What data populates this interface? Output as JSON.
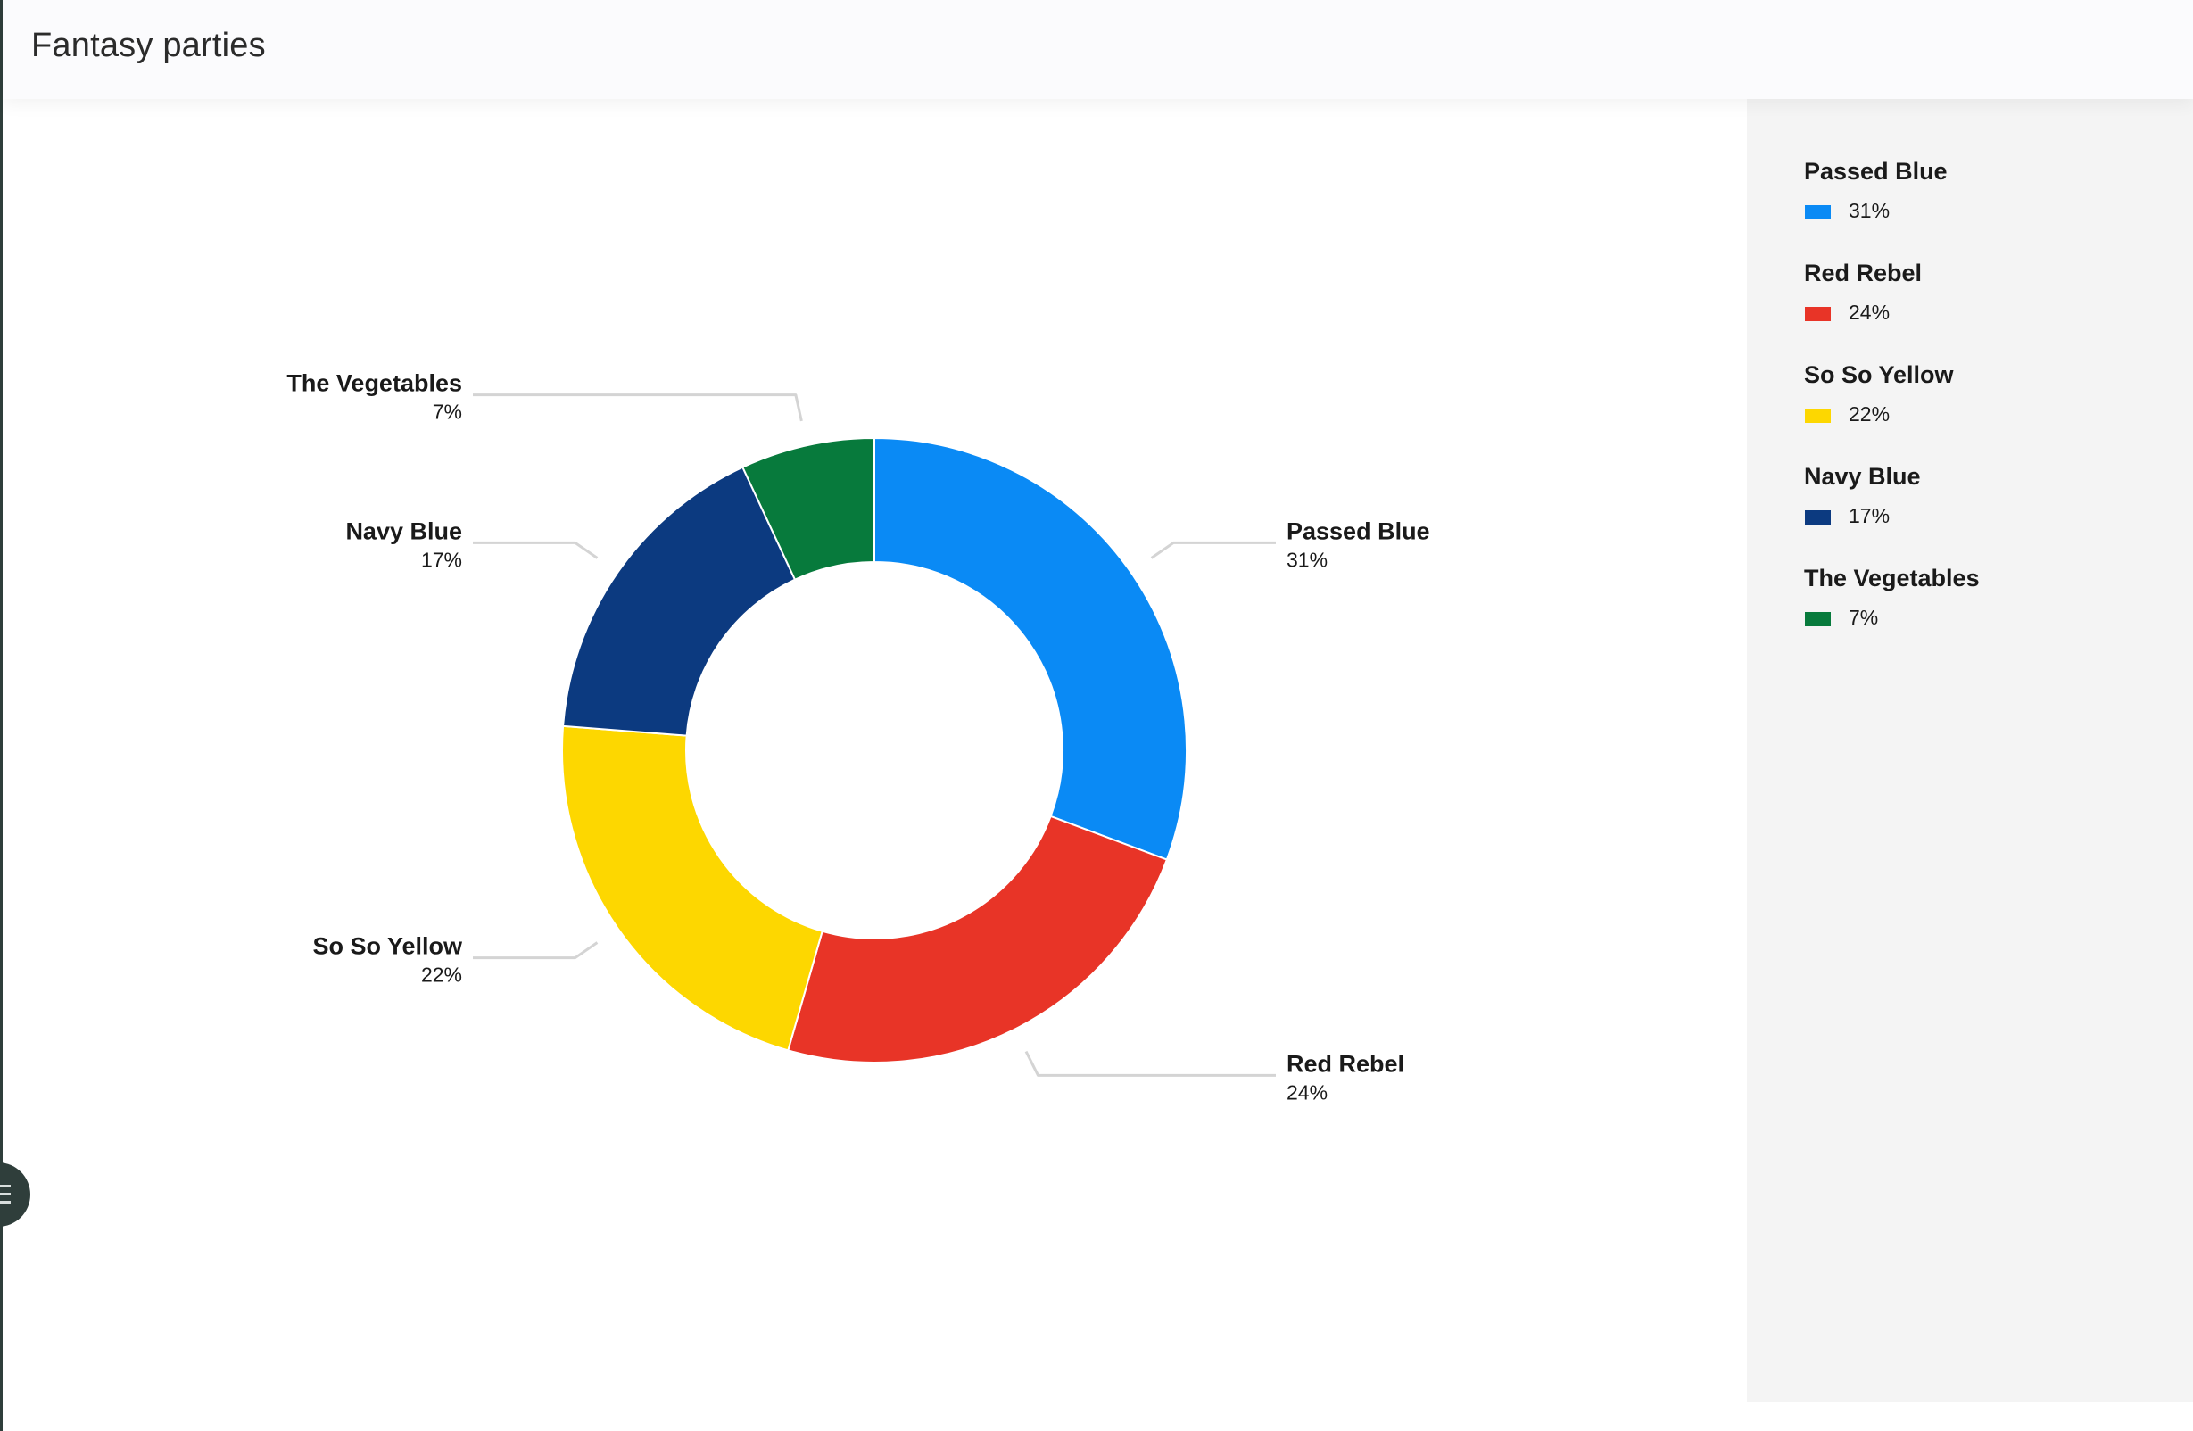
{
  "header": {
    "title": "Fantasy parties"
  },
  "chart_data": {
    "type": "pie",
    "donut": true,
    "categories": [
      "Passed Blue",
      "Red Rebel",
      "So So Yellow",
      "Navy Blue",
      "The Vegetables"
    ],
    "values": [
      31,
      24,
      22,
      17,
      7
    ],
    "labels": [
      "31%",
      "24%",
      "22%",
      "17%",
      "7%"
    ],
    "colors": [
      "#0a8af5",
      "#e83427",
      "#fdd700",
      "#0c3a80",
      "#077a3c"
    ],
    "legend_position": "right",
    "data_labels": true
  },
  "legend": {
    "items": [
      {
        "name": "Passed Blue",
        "pct": "31%",
        "color": "#0a8af5"
      },
      {
        "name": "Red Rebel",
        "pct": "24%",
        "color": "#e83427"
      },
      {
        "name": "So So Yellow",
        "pct": "22%",
        "color": "#fdd700"
      },
      {
        "name": "Navy Blue",
        "pct": "17%",
        "color": "#0c3a80"
      },
      {
        "name": "The Vegetables",
        "pct": "7%",
        "color": "#077a3c"
      }
    ]
  },
  "menu_button": {
    "icon": "menu-icon"
  }
}
